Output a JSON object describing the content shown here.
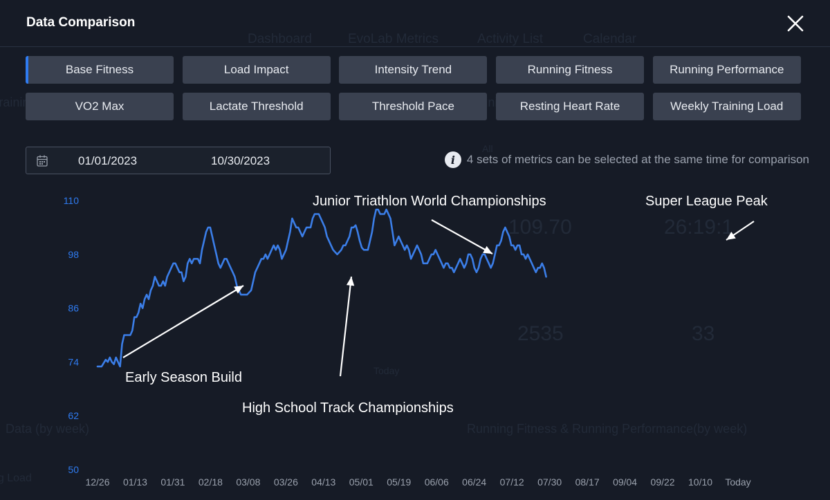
{
  "app": {
    "title": "Data Comparison",
    "close_icon": "close-icon"
  },
  "background_ghost": {
    "nav": [
      "Dashboard",
      "EvoLab Metrics",
      "Activity List",
      "Calendar"
    ],
    "labels": [
      "Training Status",
      "Training Load",
      "All",
      "109.70",
      "26:19:1",
      "2535",
      "33",
      "Today",
      "Data (by week)",
      "Running Fitness & Running Performance(by week)",
      "ng Load"
    ]
  },
  "metrics": [
    {
      "label": "Base Fitness",
      "active": true
    },
    {
      "label": "Load Impact",
      "active": false
    },
    {
      "label": "Intensity Trend",
      "active": false
    },
    {
      "label": "Running Fitness",
      "active": false
    },
    {
      "label": "Running Performance",
      "active": false
    },
    {
      "label": "VO2 Max",
      "active": false
    },
    {
      "label": "Lactate Threshold",
      "active": false
    },
    {
      "label": "Threshold Pace",
      "active": false
    },
    {
      "label": "Resting Heart Rate",
      "active": false
    },
    {
      "label": "Weekly Training Load",
      "active": false
    }
  ],
  "date_range": {
    "start": "01/01/2023",
    "end": "10/30/2023",
    "icon": "calendar-icon"
  },
  "info": {
    "icon": "info-icon",
    "text": "4 sets of metrics can be selected at the same time for comparison"
  },
  "colors": {
    "accent": "#2f7bf0",
    "line": "#3b7ee8",
    "axis_text": "#2f7bf0",
    "annotation": "#ffffff"
  },
  "chart_data": {
    "type": "line",
    "title": "",
    "xlabel": "",
    "ylabel": "",
    "ylim": [
      50,
      110
    ],
    "yticks": [
      110,
      98,
      86,
      74,
      62,
      50
    ],
    "x_tick_labels": [
      "12/26",
      "01/13",
      "01/31",
      "02/18",
      "03/08",
      "03/26",
      "04/13",
      "05/01",
      "05/19",
      "06/06",
      "06/24",
      "07/12",
      "07/30",
      "08/17",
      "09/04",
      "09/22",
      "10/10",
      "Today"
    ],
    "x_domain_days": [
      0,
      313
    ],
    "grid": false,
    "legend": "none",
    "series": [
      {
        "points": [
          [
            0,
            73
          ],
          [
            2,
            73
          ],
          [
            4,
            74.5
          ],
          [
            5,
            74
          ],
          [
            6,
            75
          ],
          [
            7,
            74
          ],
          [
            8,
            73.5
          ],
          [
            9,
            75
          ],
          [
            10,
            74
          ],
          [
            11,
            73
          ],
          [
            12,
            78
          ],
          [
            13,
            80
          ],
          [
            14,
            80
          ],
          [
            15,
            80
          ],
          [
            16,
            80
          ],
          [
            17,
            81
          ],
          [
            18,
            84
          ],
          [
            19,
            84
          ],
          [
            20,
            85
          ],
          [
            21,
            87
          ],
          [
            22,
            86
          ],
          [
            23,
            88
          ],
          [
            24,
            89
          ],
          [
            25,
            88
          ],
          [
            26,
            90
          ],
          [
            27,
            91
          ],
          [
            28,
            93
          ],
          [
            29,
            92
          ],
          [
            30,
            91
          ],
          [
            31,
            91
          ],
          [
            32,
            92
          ],
          [
            33,
            91
          ],
          [
            34,
            93
          ],
          [
            35,
            94
          ],
          [
            36,
            95
          ],
          [
            37,
            96
          ],
          [
            38,
            96
          ],
          [
            39,
            95
          ],
          [
            40,
            94
          ],
          [
            41,
            94
          ],
          [
            42,
            92
          ],
          [
            43,
            93
          ],
          [
            44,
            96
          ],
          [
            45,
            97
          ],
          [
            46,
            96
          ],
          [
            47,
            97
          ],
          [
            48,
            97
          ],
          [
            49,
            97
          ],
          [
            50,
            96
          ],
          [
            51,
            99
          ],
          [
            52,
            101
          ],
          [
            53,
            103
          ],
          [
            54,
            104
          ],
          [
            55,
            104
          ],
          [
            56,
            102
          ],
          [
            57,
            100
          ],
          [
            58,
            98
          ],
          [
            59,
            96
          ],
          [
            60,
            95
          ],
          [
            61,
            96
          ],
          [
            62,
            97
          ],
          [
            63,
            97
          ],
          [
            64,
            96
          ],
          [
            65,
            95
          ],
          [
            66,
            94
          ],
          [
            67,
            93
          ],
          [
            68,
            91
          ],
          [
            69,
            90
          ],
          [
            70,
            89
          ],
          [
            71,
            89
          ],
          [
            72,
            89
          ],
          [
            73,
            89
          ],
          [
            74,
            89.5
          ],
          [
            75,
            90
          ],
          [
            76,
            92
          ],
          [
            77,
            94
          ],
          [
            78,
            95
          ],
          [
            79,
            96
          ],
          [
            80,
            97
          ],
          [
            81,
            97
          ],
          [
            82,
            98
          ],
          [
            83,
            97
          ],
          [
            84,
            98
          ],
          [
            85,
            99
          ],
          [
            86,
            100
          ],
          [
            87,
            99
          ],
          [
            88,
            100
          ],
          [
            89,
            99
          ],
          [
            90,
            97
          ],
          [
            91,
            98
          ],
          [
            92,
            99
          ],
          [
            93,
            101
          ],
          [
            94,
            103
          ],
          [
            95,
            106
          ],
          [
            96,
            105
          ],
          [
            97,
            104
          ],
          [
            98,
            104
          ],
          [
            99,
            103
          ],
          [
            100,
            102
          ],
          [
            101,
            103
          ],
          [
            102,
            104
          ],
          [
            103,
            104
          ],
          [
            104,
            104
          ],
          [
            105,
            106
          ],
          [
            106,
            107
          ],
          [
            107,
            107
          ],
          [
            108,
            107
          ],
          [
            109,
            106
          ],
          [
            110,
            105
          ],
          [
            111,
            104
          ],
          [
            112,
            102
          ],
          [
            113,
            101
          ],
          [
            114,
            100
          ],
          [
            115,
            99
          ],
          [
            116,
            98.5
          ],
          [
            117,
            98
          ],
          [
            118,
            98.5
          ],
          [
            119,
            99
          ],
          [
            120,
            100
          ],
          [
            121,
            100
          ],
          [
            122,
            101
          ],
          [
            123,
            102
          ],
          [
            124,
            104
          ],
          [
            125,
            104
          ],
          [
            126,
            104.5
          ],
          [
            127,
            103
          ],
          [
            128,
            101
          ],
          [
            129,
            99.5
          ],
          [
            130,
            99
          ],
          [
            131,
            99
          ],
          [
            132,
            99
          ],
          [
            133,
            101
          ],
          [
            134,
            103
          ],
          [
            135,
            106
          ],
          [
            136,
            108
          ],
          [
            137,
            108
          ],
          [
            138,
            107
          ],
          [
            139,
            107
          ],
          [
            140,
            107
          ],
          [
            141,
            108
          ],
          [
            142,
            107
          ],
          [
            143,
            106
          ],
          [
            144,
            103
          ],
          [
            145,
            100
          ],
          [
            146,
            101
          ],
          [
            147,
            102
          ],
          [
            148,
            101
          ],
          [
            149,
            100
          ],
          [
            150,
            99
          ],
          [
            151,
            100
          ],
          [
            152,
            99
          ],
          [
            153,
            97
          ],
          [
            154,
            98
          ],
          [
            155,
            99
          ],
          [
            156,
            100
          ],
          [
            157,
            99
          ],
          [
            158,
            98
          ],
          [
            159,
            96
          ],
          [
            160,
            96
          ],
          [
            161,
            96
          ],
          [
            162,
            97
          ],
          [
            163,
            98
          ],
          [
            164,
            98
          ],
          [
            165,
            99
          ],
          [
            166,
            98
          ],
          [
            167,
            97
          ],
          [
            168,
            96
          ],
          [
            169,
            95
          ],
          [
            170,
            96
          ],
          [
            171,
            96
          ],
          [
            172,
            95
          ],
          [
            173,
            95
          ],
          [
            174,
            94
          ],
          [
            175,
            95
          ],
          [
            176,
            96
          ],
          [
            177,
            97
          ],
          [
            178,
            96
          ],
          [
            179,
            95
          ],
          [
            180,
            96
          ],
          [
            181,
            98
          ],
          [
            182,
            98
          ],
          [
            183,
            97
          ],
          [
            184,
            95
          ],
          [
            185,
            94
          ],
          [
            186,
            95
          ],
          [
            187,
            97
          ],
          [
            188,
            98
          ],
          [
            189,
            98
          ],
          [
            190,
            97
          ],
          [
            191,
            96
          ],
          [
            192,
            95
          ],
          [
            193,
            96
          ],
          [
            194,
            98
          ],
          [
            195,
            100
          ],
          [
            196,
            100
          ],
          [
            197,
            101
          ],
          [
            198,
            103
          ],
          [
            199,
            104
          ],
          [
            200,
            103
          ],
          [
            201,
            102
          ],
          [
            202,
            100
          ],
          [
            203,
            100
          ],
          [
            204,
            99
          ],
          [
            205,
            100
          ],
          [
            206,
            100
          ],
          [
            207,
            98
          ],
          [
            208,
            98
          ],
          [
            209,
            97
          ],
          [
            210,
            98
          ],
          [
            211,
            97
          ],
          [
            212,
            96
          ],
          [
            213,
            95
          ],
          [
            214,
            94
          ],
          [
            215,
            95
          ],
          [
            216,
            95
          ],
          [
            217,
            96
          ],
          [
            218,
            95
          ],
          [
            219,
            93
          ]
        ]
      }
    ]
  },
  "annotations": [
    {
      "label": "Early Season Build"
    },
    {
      "label": "High School Track Championships"
    },
    {
      "label": "Junior Triathlon World Championships"
    },
    {
      "label": "Super League Peak"
    }
  ]
}
